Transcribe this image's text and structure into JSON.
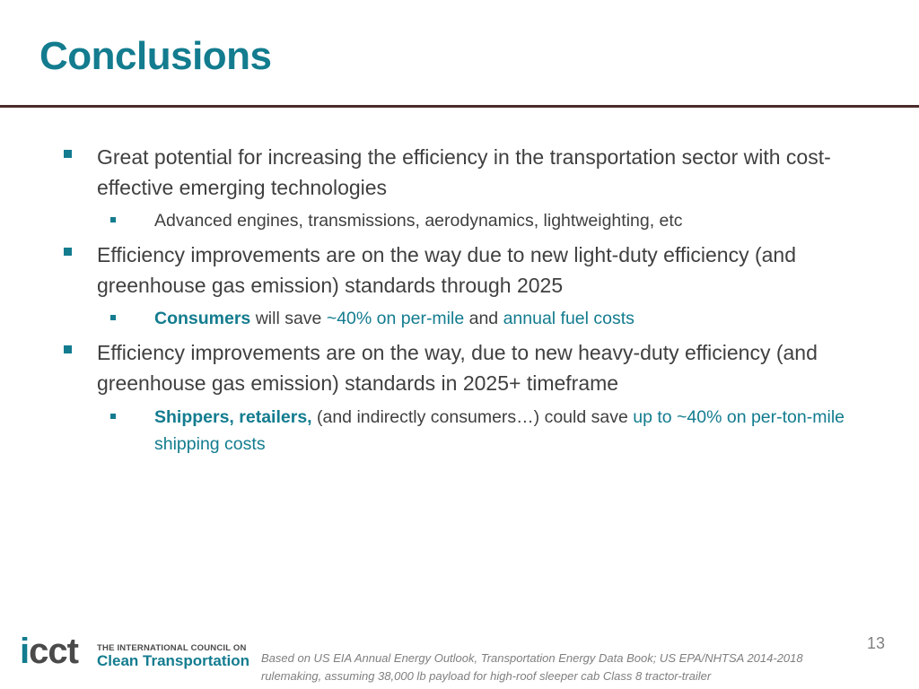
{
  "slide": {
    "title": "Conclusions",
    "bullets": [
      {
        "text": "Great potential for increasing the efficiency in the transportation sector with cost-effective emerging technologies",
        "sub": [
          {
            "text": "Advanced engines, transmissions, aerodynamics, lightweighting, etc"
          }
        ]
      },
      {
        "text": "Efficiency improvements are on the way due to new light-duty efficiency (and greenhouse gas emission) standards through 2025",
        "sub": [
          {
            "strong": "Consumers",
            "t1": " will save ",
            "hl1": "~40% on per-mile",
            "t2": " and ",
            "hl2": "annual fuel costs"
          }
        ]
      },
      {
        "text": "Efficiency improvements are on the way, due to new heavy-duty efficiency (and greenhouse gas emission) standards in 2025+ timeframe",
        "sub": [
          {
            "strong": "Shippers, retailers,",
            "t1": " (and indirectly consumers…) could save ",
            "hl1": "up to ~40% on per-ton-mile shipping costs"
          }
        ]
      }
    ],
    "footnote": "Based on US EIA Annual Energy Outlook, Transportation Energy Data Book; US EPA/NHTSA 2014-2018 rulemaking, assuming 38,000 lb payload for high-roof sleeper cab Class 8 tractor-trailer",
    "page_number": "13"
  },
  "logo": {
    "wordmark_i": "i",
    "wordmark_rest": "cct",
    "line1": "THE INTERNATIONAL COUNCIL ON",
    "line2": "Clean Transportation"
  },
  "colors": {
    "accent": "#137c8f",
    "body_text": "#404040",
    "rule": "#4a2c2a",
    "footnote": "#7f7f7f"
  }
}
